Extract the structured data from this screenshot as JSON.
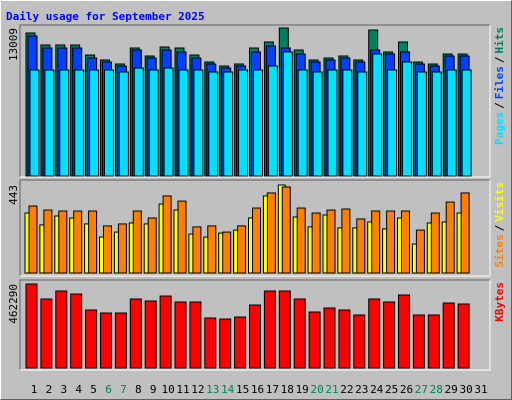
{
  "chart_data": [
    {
      "type": "bar",
      "title": "Daily usage for September 2025",
      "legend_separator": "/",
      "ylim": [
        0,
        13009
      ],
      "yticks": [
        13009
      ],
      "series": [
        {
          "name": "Pages",
          "color": "#00e0ff",
          "values": [
            9317,
            9317,
            9317,
            9317,
            9317,
            9317,
            9142,
            9493,
            9317,
            9493,
            9317,
            9317,
            9142,
            9142,
            9317,
            9317,
            9669,
            10900,
            9317,
            9142,
            9317,
            9317,
            9142,
            10724,
            9317,
            10021,
            9142,
            9142,
            9317,
            9317,
            null
          ]
        },
        {
          "name": "Files",
          "color": "#0040ff",
          "values": [
            12306,
            11251,
            11251,
            11251,
            10372,
            10021,
            9669,
            11075,
            10372,
            11075,
            10900,
            10372,
            9845,
            9493,
            9669,
            10900,
            11427,
            11251,
            10724,
            10021,
            10196,
            10372,
            10021,
            11075,
            10724,
            10900,
            9845,
            9669,
            10548,
            10548,
            null
          ]
        },
        {
          "name": "Hits",
          "color": "#00805c",
          "values": [
            12570,
            11515,
            11515,
            11515,
            10636,
            10196,
            9845,
            11251,
            10548,
            11339,
            11251,
            10636,
            10021,
            9669,
            9845,
            11251,
            11779,
            13009,
            11075,
            10196,
            10372,
            10548,
            10196,
            12833,
            10900,
            11779,
            10021,
            9845,
            10724,
            10724,
            null
          ]
        }
      ]
    },
    {
      "type": "bar",
      "legend_separator": "/",
      "ylim": [
        0,
        443
      ],
      "yticks": [
        443
      ],
      "series": [
        {
          "name": "Sites",
          "color": "#ff8000",
          "values": [
            337,
            317,
            312,
            312,
            312,
            237,
            247,
            312,
            277,
            388,
            362,
            232,
            237,
            206,
            237,
            327,
            403,
            433,
            327,
            302,
            317,
            322,
            272,
            312,
            312,
            312,
            216,
            302,
            357,
            403,
            null
          ]
        },
        {
          "name": "Visits",
          "color": "#ffff00",
          "values": [
            302,
            242,
            287,
            277,
            247,
            181,
            206,
            252,
            247,
            347,
            317,
            196,
            181,
            201,
            216,
            277,
            388,
            443,
            282,
            232,
            292,
            227,
            227,
            257,
            222,
            277,
            146,
            252,
            257,
            302,
            null
          ]
        }
      ]
    },
    {
      "type": "bar",
      "ylim": [
        0,
        462290
      ],
      "yticks": [
        462290
      ],
      "categories": [
        "1",
        "2",
        "3",
        "4",
        "5",
        "6",
        "7",
        "8",
        "9",
        "10",
        "11",
        "12",
        "13",
        "14",
        "15",
        "16",
        "17",
        "18",
        "19",
        "20",
        "21",
        "22",
        "23",
        "24",
        "25",
        "26",
        "27",
        "28",
        "29",
        "30",
        "31"
      ],
      "category_colors": [
        "#000000",
        "#000000",
        "#000000",
        "#000000",
        "#000000",
        "#00805c",
        "#00805c",
        "#000000",
        "#000000",
        "#000000",
        "#000000",
        "#000000",
        "#00805c",
        "#00805c",
        "#000000",
        "#000000",
        "#000000",
        "#000000",
        "#000000",
        "#00805c",
        "#00805c",
        "#000000",
        "#000000",
        "#000000",
        "#000000",
        "#000000",
        "#00805c",
        "#00805c",
        "#000000",
        "#000000",
        "#000000"
      ],
      "series": [
        {
          "name": "KBytes",
          "color": "#ff0000",
          "values": [
            462290,
            379700,
            423700,
            407200,
            319200,
            302700,
            302700,
            379700,
            368700,
            396200,
            363200,
            363200,
            275200,
            269600,
            280700,
            346700,
            423700,
            423700,
            379700,
            308200,
            330200,
            319200,
            291700,
            379700,
            363200,
            401700,
            291700,
            291700,
            357700,
            352200,
            null
          ]
        }
      ]
    }
  ]
}
